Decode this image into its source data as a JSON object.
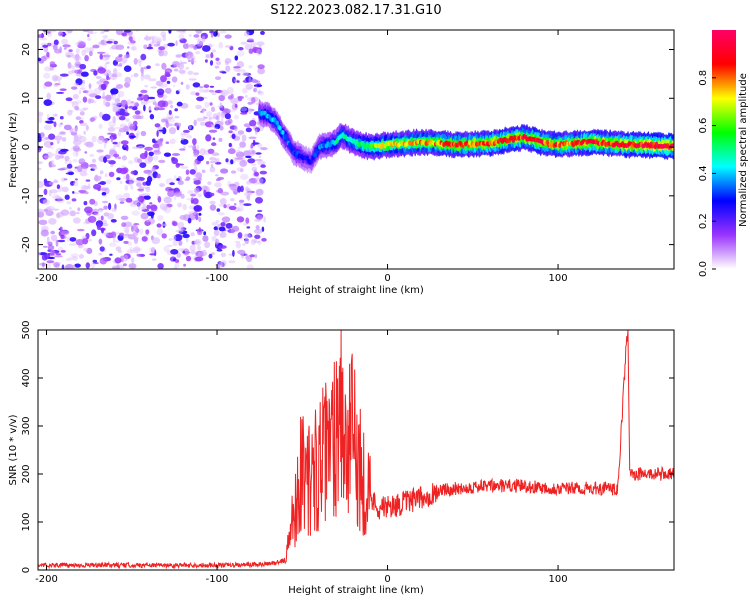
{
  "figure": {
    "title": "S122.2023.082.17.31.G10"
  },
  "chart_data": [
    {
      "type": "heatmap",
      "title": "",
      "xlabel": "Height of straight line (km)",
      "ylabel": "Frequency (Hz)",
      "xlim": [
        -205,
        168
      ],
      "ylim": [
        -25,
        24
      ],
      "xticks": [
        -200,
        -100,
        0,
        100
      ],
      "yticks": [
        -20,
        -10,
        0,
        10,
        20
      ],
      "colorbar": {
        "label": "Normalized spectral amplitude",
        "range": [
          0,
          1
        ],
        "ticks": [
          "0.0",
          "0.2",
          "0.4",
          "0.6",
          "0.8"
        ],
        "colors": [
          "#ffffff",
          "#9933ff",
          "#0000ff",
          "#00ffff",
          "#00ff00",
          "#ffff00",
          "#ff0000",
          "#ff0066"
        ]
      },
      "noise_region": {
        "x_range": [
          -205,
          -72
        ],
        "freq_range": [
          -25,
          24
        ],
        "amplitude": 0.15
      },
      "ridge": {
        "x": [
          -75,
          -70,
          -65,
          -62,
          -58,
          -55,
          -50,
          -45,
          -40,
          -35,
          -30,
          -27,
          -20,
          -10,
          0,
          20,
          40,
          60,
          80,
          90,
          100,
          120,
          140,
          168
        ],
        "freq": [
          7,
          6.5,
          5,
          3,
          1,
          -1,
          -2,
          -3,
          0,
          0.5,
          1,
          2.5,
          1,
          0,
          0.5,
          1,
          0.5,
          0.8,
          2,
          1,
          0.5,
          1,
          0.5,
          0.2
        ],
        "amplitude": [
          0.35,
          0.4,
          0.4,
          0.4,
          0.35,
          0.3,
          0.3,
          0.25,
          0.35,
          0.4,
          0.45,
          0.45,
          0.5,
          0.6,
          0.7,
          0.75,
          0.8,
          0.85,
          0.85,
          0.85,
          0.8,
          0.85,
          0.9,
          0.95
        ]
      }
    },
    {
      "type": "line",
      "title": "",
      "xlabel": "Height of straight line (km)",
      "ylabel": "SNR (10 * v/v)",
      "xlim": [
        -205,
        168
      ],
      "ylim": [
        0,
        500
      ],
      "xticks": [
        -200,
        -100,
        0,
        100
      ],
      "yticks": [
        0,
        100,
        200,
        300,
        400,
        500
      ],
      "color": "#ee2222",
      "series": [
        {
          "x": [
            -205,
            -180,
            -150,
            -120,
            -90,
            -70,
            -60,
            -55,
            -50,
            -45,
            -40,
            -35,
            -30,
            -28,
            -25,
            -20,
            -15,
            -10,
            -5,
            0,
            10,
            20,
            30,
            40,
            60,
            80,
            100,
            120,
            130,
            135,
            140,
            141,
            142,
            145,
            150,
            168
          ],
          "y": [
            10,
            10,
            10,
            10,
            10,
            12,
            20,
            120,
            220,
            180,
            230,
            240,
            300,
            410,
            250,
            280,
            200,
            150,
            130,
            130,
            140,
            150,
            165,
            170,
            175,
            175,
            170,
            170,
            170,
            165,
            470,
            500,
            200,
            200,
            200,
            200
          ]
        }
      ]
    }
  ]
}
